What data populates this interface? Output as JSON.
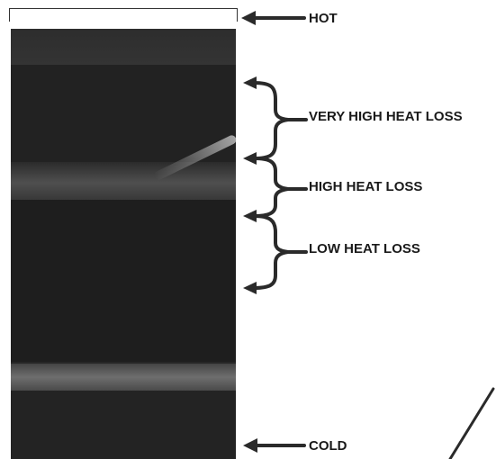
{
  "labels": {
    "hot": "HOT",
    "very_high_heat_loss": "VERY HIGH HEAT LOSS",
    "high_heat_loss": "HIGH HEAT LOSS",
    "low_heat_loss": "LOW HEAT LOSS",
    "cold": "COLD"
  },
  "colors": {
    "ink": "#1a1a1a",
    "image_dark": "#262626",
    "band_light": "#6e6e6e"
  }
}
